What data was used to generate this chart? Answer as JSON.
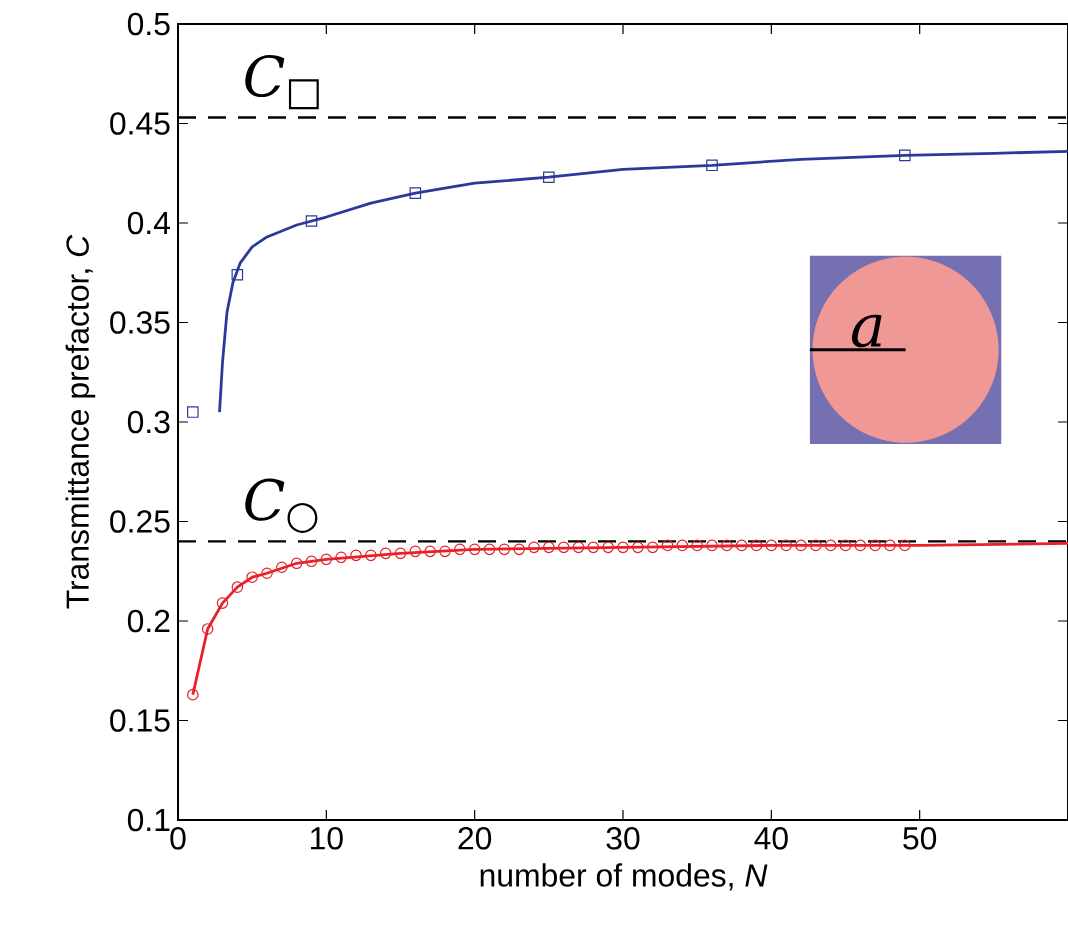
{
  "chart_data": {
    "type": "scatter",
    "xlabel": "number of modes, *N*",
    "ylabel": "Transmittance prefactor, *C*",
    "xlim": [
      0,
      60
    ],
    "ylim": [
      0.1,
      0.5
    ],
    "xticks": [
      0,
      10,
      20,
      30,
      40,
      50
    ],
    "yticks": [
      0.1,
      0.15,
      0.2,
      0.25,
      0.3,
      0.35,
      0.4,
      0.45,
      0.5
    ],
    "series": [
      {
        "type": "line",
        "color": "#2b3a9a",
        "marker": "none",
        "line_style": "solid",
        "x": [
          2.8,
          3.0,
          3.3,
          3.7,
          4.2,
          5,
          6,
          8,
          10,
          13,
          16,
          20,
          25,
          30,
          36,
          42,
          49,
          55,
          60
        ],
        "values": [
          0.305,
          0.33,
          0.355,
          0.37,
          0.38,
          0.388,
          0.393,
          0.399,
          0.403,
          0.41,
          0.415,
          0.42,
          0.423,
          0.427,
          0.429,
          0.432,
          0.434,
          0.435,
          0.436
        ]
      },
      {
        "color": "#2b3a9a",
        "marker": "square",
        "x": [
          1,
          4,
          9,
          16,
          25,
          36,
          49
        ],
        "values": [
          0.305,
          0.374,
          0.401,
          0.415,
          0.423,
          0.429,
          0.434
        ]
      },
      {
        "type": "line",
        "color": "#e8202a",
        "marker": "none",
        "line_style": "solid",
        "x": [
          1,
          2,
          3,
          4,
          5,
          6,
          8,
          10,
          15,
          20,
          30,
          40,
          50,
          60
        ],
        "values": [
          0.163,
          0.196,
          0.209,
          0.217,
          0.222,
          0.224,
          0.229,
          0.231,
          0.234,
          0.236,
          0.237,
          0.238,
          0.238,
          0.239
        ]
      },
      {
        "color": "#e8202a",
        "marker": "circle",
        "x": [
          1,
          2,
          3,
          4,
          5,
          6,
          7,
          8,
          9,
          10,
          11,
          12,
          13,
          14,
          15,
          16,
          17,
          18,
          19,
          20,
          21,
          22,
          23,
          24,
          25,
          26,
          27,
          28,
          29,
          30,
          31,
          32,
          33,
          34,
          35,
          36,
          37,
          38,
          39,
          40,
          41,
          42,
          43,
          44,
          45,
          46,
          47,
          48,
          49
        ],
        "values": [
          0.163,
          0.196,
          0.209,
          0.217,
          0.222,
          0.224,
          0.227,
          0.229,
          0.23,
          0.231,
          0.232,
          0.233,
          0.233,
          0.234,
          0.234,
          0.235,
          0.235,
          0.235,
          0.236,
          0.236,
          0.236,
          0.236,
          0.236,
          0.237,
          0.237,
          0.237,
          0.237,
          0.237,
          0.237,
          0.237,
          0.237,
          0.237,
          0.238,
          0.238,
          0.238,
          0.238,
          0.238,
          0.238,
          0.238,
          0.238,
          0.238,
          0.238,
          0.238,
          0.238,
          0.238,
          0.238,
          0.238,
          0.238,
          0.238
        ]
      }
    ],
    "ref_lines": [
      {
        "axis": "y",
        "value": 0.453,
        "label": "*C*$_{□}$",
        "color": "#000000",
        "line_style": "dashed"
      },
      {
        "axis": "y",
        "value": 0.24,
        "label": "*C*$_{○}$",
        "color": "#000000",
        "line_style": "dashed"
      }
    ],
    "annotations": [
      "a"
    ]
  }
}
